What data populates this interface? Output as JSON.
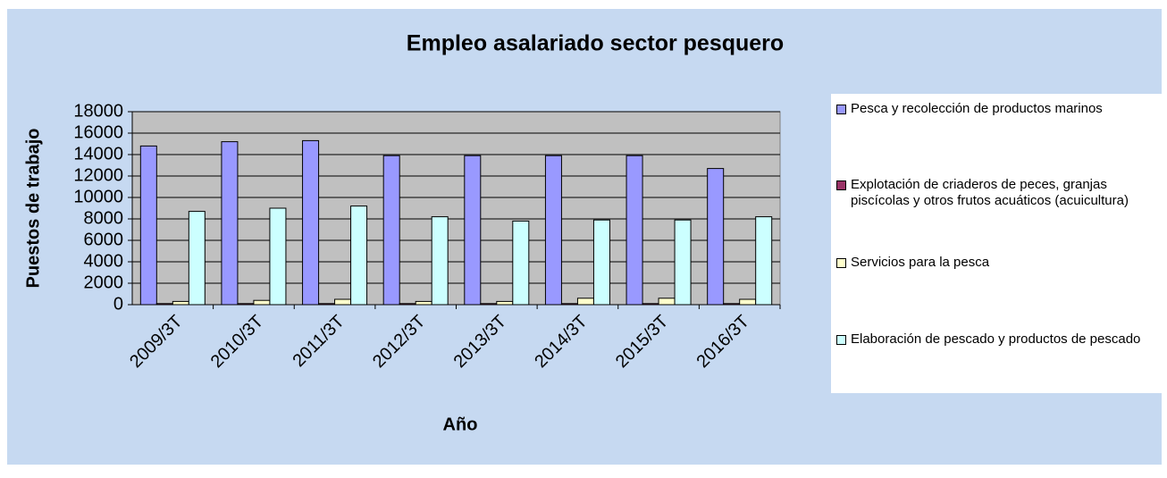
{
  "chart_data": {
    "type": "bar",
    "title": "Empleo asalariado sector pesquero",
    "x_label": "Año",
    "y_label": "Puestos de trabajo",
    "categories": [
      "2009/3T",
      "2010/3T",
      "2011/3T",
      "2012/3T",
      "2013/3T",
      "2014/3T",
      "2015/3T",
      "2016/3T"
    ],
    "series": [
      {
        "name": "Pesca y recolección de productos marinos",
        "color": "#9999ff",
        "values": [
          14800,
          15200,
          15300,
          13900,
          13900,
          13900,
          13900,
          12700
        ]
      },
      {
        "name": "Explotación de criaderos de peces, granjas piscícolas y otros frutos acuáticos (acuicultura)",
        "color": "#993366",
        "values": [
          100,
          100,
          100,
          100,
          100,
          100,
          100,
          100
        ]
      },
      {
        "name": "Servicios para la pesca",
        "color": "#ffffcc",
        "values": [
          300,
          400,
          500,
          300,
          300,
          600,
          600,
          500
        ]
      },
      {
        "name": "Elaboración de pescado y productos de pescado",
        "color": "#ccffff",
        "values": [
          8700,
          9000,
          9200,
          8200,
          7800,
          7900,
          7900,
          8200
        ]
      }
    ],
    "ylim": [
      0,
      18000
    ],
    "yticks": [
      0,
      2000,
      4000,
      6000,
      8000,
      10000,
      12000,
      14000,
      16000,
      18000
    ],
    "grid": true,
    "legend": "right"
  }
}
